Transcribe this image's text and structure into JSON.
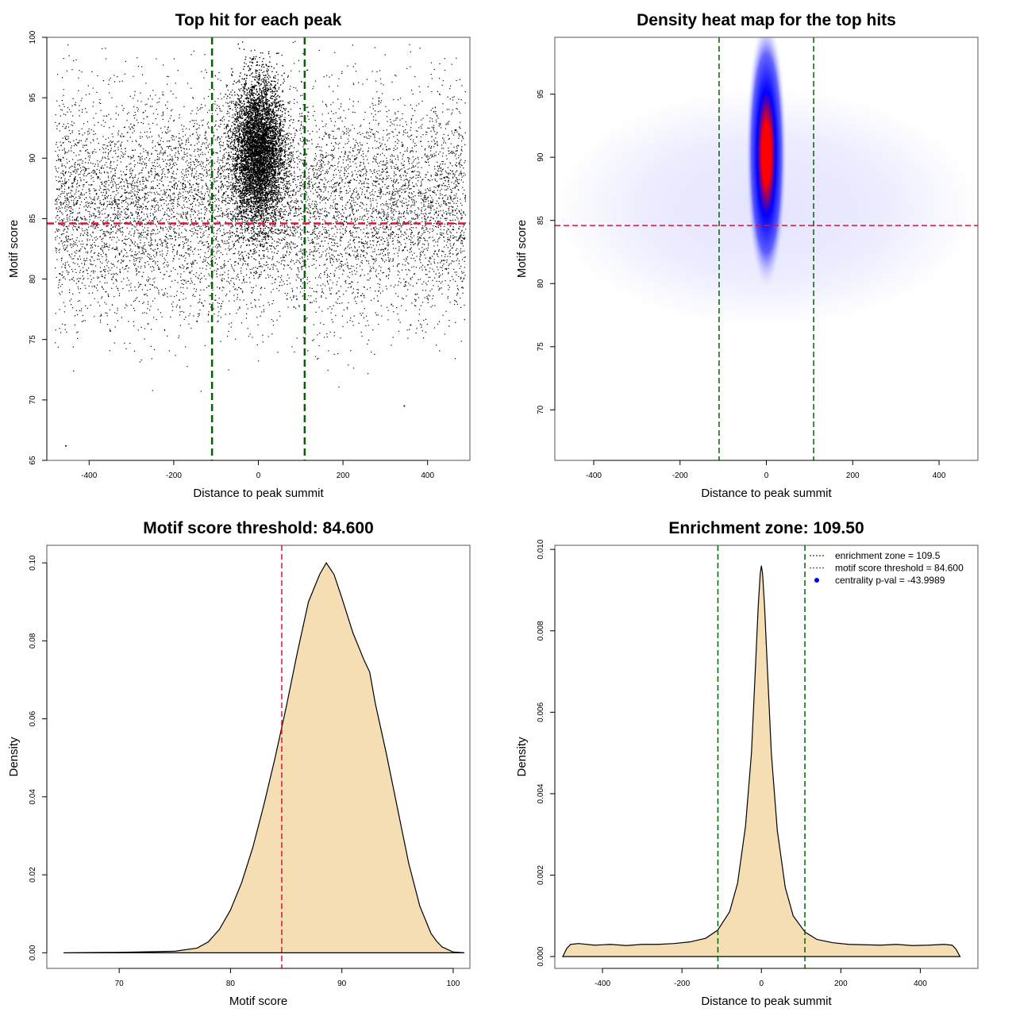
{
  "chart_data": [
    {
      "type": "scatter",
      "title": "Top hit for each peak",
      "xlabel": "Distance to peak summit",
      "ylabel": "Motif score",
      "xlim": [
        -500,
        500
      ],
      "ylim": [
        65,
        100
      ],
      "xticks": [
        -400,
        -200,
        0,
        200,
        400
      ],
      "yticks": [
        65,
        70,
        75,
        80,
        85,
        90,
        95,
        100
      ],
      "xtick_labels": [
        "-400",
        "-200",
        "0",
        "200",
        "400"
      ],
      "ytick_labels": [
        "65",
        "70",
        "75",
        "80",
        "85",
        "90",
        "95",
        "100"
      ],
      "background": {
        "x_range": [
          -480,
          490
        ],
        "y_mean": 86,
        "y_sd": 4.5
      },
      "central_cluster": {
        "x_mean": 0,
        "x_sd": 30,
        "y_mean": 90.5,
        "y_sd": 3.0
      },
      "outliers": [
        {
          "x": -455,
          "y": 66.2
        },
        {
          "x": 345,
          "y": 69.5
        },
        {
          "x": -350,
          "y": 75.7
        },
        {
          "x": -145,
          "y": 76.5
        },
        {
          "x": 360,
          "y": 76.2
        }
      ],
      "vlines": [
        -109.5,
        109.5
      ],
      "hline": 84.6,
      "colors": {
        "points": "#000000",
        "vline": "#006400",
        "hline": "#DC143C"
      }
    },
    {
      "type": "heatmap",
      "title": "Density heat map for the top hits",
      "xlabel": "Distance to peak summit",
      "ylabel": "Motif score",
      "xlim": [
        -490,
        490
      ],
      "ylim": [
        66,
        99.5
      ],
      "xticks": [
        -400,
        -200,
        0,
        200,
        400
      ],
      "yticks": [
        70,
        75,
        80,
        85,
        90,
        95
      ],
      "xtick_labels": [
        "-400",
        "-200",
        "0",
        "200",
        "400"
      ],
      "ytick_labels": [
        "70",
        "75",
        "80",
        "85",
        "90",
        "95"
      ],
      "density_peak": {
        "x": 0,
        "y": 90.3
      },
      "vlines": [
        -109.5,
        109.5
      ],
      "hline": 84.6,
      "colors": {
        "low": "#FFFFFF",
        "mid": "#0000FF",
        "high": "#FF0000",
        "vline": "#006400",
        "hline": "#DC143C"
      }
    },
    {
      "type": "area",
      "title": "Motif score threshold: 84.600",
      "xlabel": "Motif score",
      "ylabel": "Density",
      "xlim": [
        63.5,
        101.5
      ],
      "ylim": [
        -0.004,
        0.1045
      ],
      "xticks": [
        70,
        80,
        90,
        100
      ],
      "yticks": [
        0,
        0.02,
        0.04,
        0.06,
        0.08,
        0.1
      ],
      "xtick_labels": [
        "70",
        "80",
        "90",
        "100"
      ],
      "ytick_labels": [
        "0.00",
        "0.02",
        "0.04",
        "0.06",
        "0.08",
        "0.10"
      ],
      "x": [
        65,
        70,
        75,
        77,
        78,
        79,
        80,
        81,
        82,
        83,
        84,
        85,
        86,
        87,
        88,
        88.6,
        89.3,
        90,
        91,
        92,
        92.5,
        93,
        94,
        95,
        96,
        97,
        98,
        98.5,
        99,
        100,
        101
      ],
      "y": [
        0.0,
        0.0001,
        0.0004,
        0.0012,
        0.0028,
        0.006,
        0.011,
        0.018,
        0.027,
        0.038,
        0.05,
        0.063,
        0.077,
        0.09,
        0.097,
        0.1,
        0.097,
        0.091,
        0.082,
        0.075,
        0.072,
        0.064,
        0.051,
        0.037,
        0.023,
        0.012,
        0.005,
        0.003,
        0.0015,
        0.0002,
        0.0
      ],
      "vline": 84.6,
      "colors": {
        "fill": "#F5DEB3",
        "line": "#000000",
        "vline": "#DC143C"
      }
    },
    {
      "type": "area",
      "title": "Enrichment zone: 109.50",
      "xlabel": "Distance to peak summit",
      "ylabel": "Density",
      "xlim": [
        -520,
        545
      ],
      "ylim": [
        -0.00029,
        0.0101
      ],
      "xticks": [
        -400,
        -200,
        0,
        200,
        400
      ],
      "yticks": [
        0,
        0.002,
        0.004,
        0.006,
        0.008,
        0.01
      ],
      "xtick_labels": [
        "-400",
        "-200",
        "0",
        "200",
        "400"
      ],
      "ytick_labels": [
        "0.000",
        "0.002",
        "0.004",
        "0.006",
        "0.008",
        "0.010"
      ],
      "x": [
        -500,
        -490,
        -480,
        -460,
        -420,
        -380,
        -340,
        -300,
        -260,
        -220,
        -180,
        -140,
        -110,
        -80,
        -60,
        -40,
        -25,
        -15,
        -8,
        -3,
        0,
        3,
        8,
        15,
        25,
        40,
        60,
        80,
        110,
        140,
        180,
        220,
        260,
        300,
        340,
        380,
        420,
        460,
        480,
        490,
        500
      ],
      "y": [
        0.0,
        0.0002,
        0.0003,
        0.00032,
        0.00028,
        0.0003,
        0.00027,
        0.0003,
        0.0003,
        0.00032,
        0.00036,
        0.00045,
        0.00065,
        0.0011,
        0.0018,
        0.0032,
        0.005,
        0.0071,
        0.0086,
        0.0094,
        0.0096,
        0.0094,
        0.0086,
        0.0071,
        0.005,
        0.0031,
        0.0017,
        0.001,
        0.0006,
        0.00042,
        0.00034,
        0.0003,
        0.00029,
        0.00028,
        0.0003,
        0.00027,
        0.00028,
        0.0003,
        0.00028,
        0.00018,
        0.0
      ],
      "vlines": [
        -109.5,
        109.5
      ],
      "legend": {
        "placement": "top-right",
        "entries": [
          {
            "label": "enrichment zone = 109.5",
            "color": "#006400",
            "symbol": "dotted-line"
          },
          {
            "label": "motif score threshold = 84.600",
            "color": "#DC143C",
            "symbol": "dotted-line"
          },
          {
            "label": "centrality p-val = -43.9989",
            "color": "#0000FF",
            "symbol": "point"
          }
        ]
      },
      "colors": {
        "fill": "#F5DEB3",
        "line": "#000000",
        "vline": "#006400"
      }
    }
  ]
}
